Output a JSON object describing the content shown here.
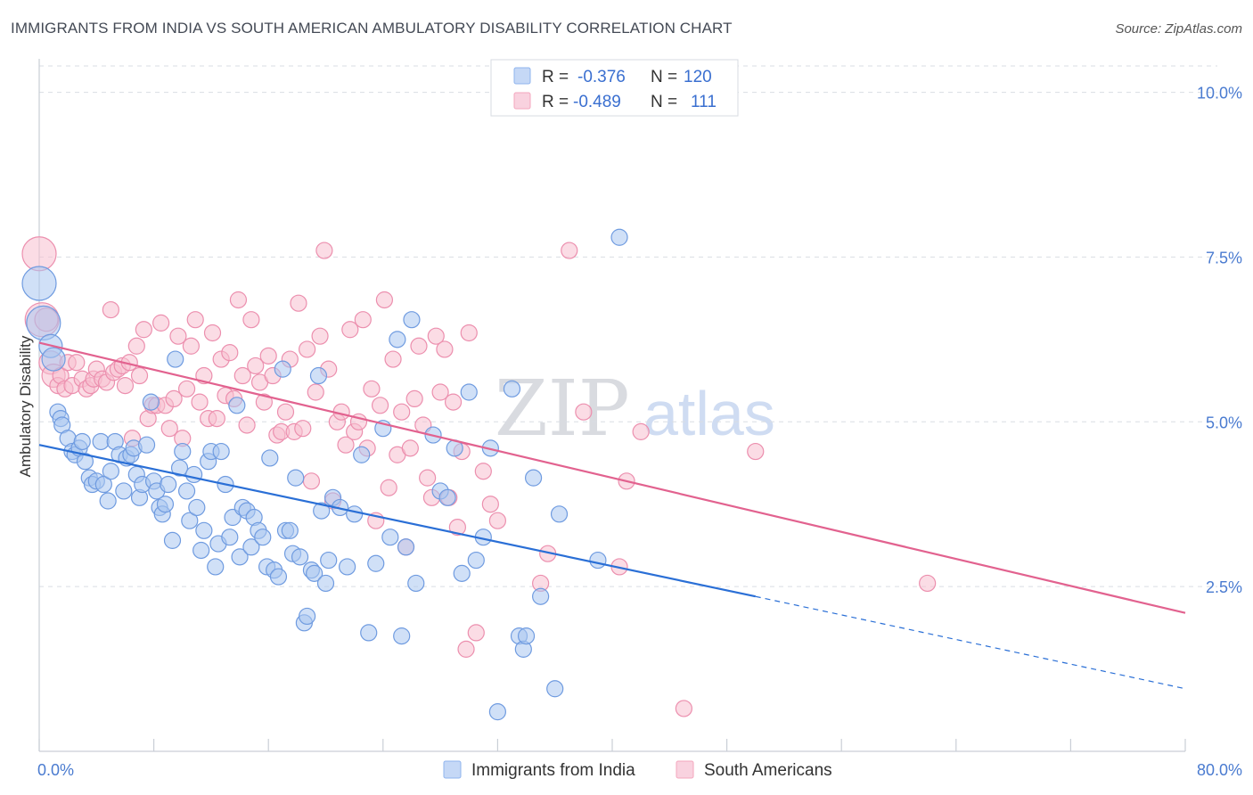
{
  "header": {
    "title": "IMMIGRANTS FROM INDIA VS SOUTH AMERICAN AMBULATORY DISABILITY CORRELATION CHART",
    "source": "Source: ZipAtlas.com"
  },
  "watermark": {
    "zip": "ZIP",
    "atlas": "atlas"
  },
  "legend_box": [
    {
      "r_label": "R = ",
      "r_value": "-0.376",
      "n_label": "N = ",
      "n_value": "120",
      "color": "#8fb4ee"
    },
    {
      "r_label": "R = ",
      "r_value": "-0.489",
      "n_label": "N = ",
      "n_value": "111",
      "color": "#f4a7be"
    }
  ],
  "colors": {
    "blue_fill": "#a9c6f0",
    "blue_stroke": "#6f9be0",
    "blue_line": "#2a6fd6",
    "pink_fill": "#f7bfd0",
    "pink_stroke": "#ec8fae",
    "pink_line": "#e2628f",
    "grid": "#d9dde3",
    "tick_label": "#4a7bd0"
  },
  "chart_data": {
    "type": "scatter",
    "title": "IMMIGRANTS FROM INDIA VS SOUTH AMERICAN AMBULATORY DISABILITY CORRELATION CHART",
    "xlabel": "",
    "ylabel": "Ambulatory Disability",
    "xlim": [
      0,
      80
    ],
    "ylim": [
      0,
      10.4
    ],
    "x_tick_labels": [
      "0.0%",
      "80.0%"
    ],
    "y_ticks": [
      2.5,
      5.0,
      7.5,
      10.0
    ],
    "y_tick_labels": [
      "2.5%",
      "5.0%",
      "7.5%",
      "10.0%"
    ],
    "grid": true,
    "legend_position": "top-center",
    "series": [
      {
        "name": "Immigrants from India",
        "R": -0.376,
        "N": 120,
        "trend": {
          "x0": 0,
          "y0": 4.65,
          "x1": 50,
          "y1": 2.35,
          "dash_to_x": 80,
          "dash_to_y": 0.95
        },
        "points": [
          [
            0,
            7.1
          ],
          [
            0.3,
            6.5
          ],
          [
            0.8,
            6.15
          ],
          [
            1,
            5.95
          ],
          [
            1.3,
            5.15
          ],
          [
            1.5,
            5.05
          ],
          [
            1.6,
            4.95
          ],
          [
            2,
            4.75
          ],
          [
            2.3,
            4.55
          ],
          [
            2.5,
            4.5
          ],
          [
            2.8,
            4.6
          ],
          [
            3,
            4.7
          ],
          [
            3.2,
            4.4
          ],
          [
            3.5,
            4.15
          ],
          [
            3.7,
            4.05
          ],
          [
            4,
            4.1
          ],
          [
            4.3,
            4.7
          ],
          [
            4.5,
            4.05
          ],
          [
            4.8,
            3.8
          ],
          [
            5,
            4.25
          ],
          [
            5.3,
            4.7
          ],
          [
            5.6,
            4.5
          ],
          [
            5.9,
            3.95
          ],
          [
            6.1,
            4.45
          ],
          [
            6.4,
            4.5
          ],
          [
            6.6,
            4.6
          ],
          [
            6.8,
            4.2
          ],
          [
            7,
            3.85
          ],
          [
            7.2,
            4.05
          ],
          [
            7.5,
            4.65
          ],
          [
            7.8,
            5.3
          ],
          [
            8,
            4.1
          ],
          [
            8.2,
            3.95
          ],
          [
            8.4,
            3.7
          ],
          [
            8.6,
            3.6
          ],
          [
            8.8,
            3.75
          ],
          [
            9,
            4.05
          ],
          [
            9.3,
            3.2
          ],
          [
            9.5,
            5.95
          ],
          [
            9.8,
            4.3
          ],
          [
            10,
            4.55
          ],
          [
            10.3,
            3.95
          ],
          [
            10.5,
            3.5
          ],
          [
            10.8,
            4.2
          ],
          [
            11,
            3.7
          ],
          [
            11.3,
            3.05
          ],
          [
            11.5,
            3.35
          ],
          [
            11.8,
            4.4
          ],
          [
            12,
            4.55
          ],
          [
            12.3,
            2.8
          ],
          [
            12.5,
            3.15
          ],
          [
            12.7,
            4.55
          ],
          [
            13,
            4.05
          ],
          [
            13.3,
            3.25
          ],
          [
            13.5,
            3.55
          ],
          [
            13.8,
            5.25
          ],
          [
            14,
            2.95
          ],
          [
            14.2,
            3.7
          ],
          [
            14.5,
            3.65
          ],
          [
            14.8,
            3.1
          ],
          [
            15,
            3.55
          ],
          [
            15.3,
            3.35
          ],
          [
            15.6,
            3.25
          ],
          [
            15.9,
            2.8
          ],
          [
            16.1,
            4.45
          ],
          [
            16.4,
            2.75
          ],
          [
            16.7,
            2.65
          ],
          [
            17,
            5.8
          ],
          [
            17.2,
            3.35
          ],
          [
            17.5,
            3.35
          ],
          [
            17.7,
            3.0
          ],
          [
            17.9,
            4.15
          ],
          [
            18.2,
            2.95
          ],
          [
            18.5,
            1.95
          ],
          [
            18.7,
            2.05
          ],
          [
            19,
            2.75
          ],
          [
            19.2,
            2.7
          ],
          [
            19.5,
            5.7
          ],
          [
            19.7,
            3.65
          ],
          [
            20,
            2.55
          ],
          [
            20.2,
            2.9
          ],
          [
            20.5,
            3.85
          ],
          [
            21,
            3.7
          ],
          [
            21.5,
            2.8
          ],
          [
            22,
            3.6
          ],
          [
            22.5,
            4.5
          ],
          [
            23,
            1.8
          ],
          [
            23.5,
            2.85
          ],
          [
            24,
            4.9
          ],
          [
            24.5,
            3.25
          ],
          [
            25,
            6.25
          ],
          [
            25.3,
            1.75
          ],
          [
            25.6,
            3.1
          ],
          [
            26,
            6.55
          ],
          [
            26.3,
            2.55
          ],
          [
            27.5,
            4.8
          ],
          [
            28,
            3.95
          ],
          [
            28.5,
            3.85
          ],
          [
            29,
            4.6
          ],
          [
            29.5,
            2.7
          ],
          [
            30,
            5.45
          ],
          [
            30.5,
            2.9
          ],
          [
            31,
            3.25
          ],
          [
            31.5,
            4.6
          ],
          [
            32,
            0.6
          ],
          [
            33,
            5.5
          ],
          [
            33.5,
            1.75
          ],
          [
            33.8,
            1.55
          ],
          [
            34,
            1.75
          ],
          [
            34.5,
            4.15
          ],
          [
            35,
            2.35
          ],
          [
            36,
            0.95
          ],
          [
            36.3,
            3.6
          ],
          [
            39,
            2.9
          ],
          [
            40.5,
            7.8
          ]
        ]
      },
      {
        "name": "South Americans",
        "R": -0.489,
        "N": 111,
        "trend": {
          "x0": 0,
          "y0": 6.2,
          "x1": 80,
          "y1": 2.1
        },
        "points": [
          [
            0,
            7.55
          ],
          [
            0.2,
            6.55
          ],
          [
            0.5,
            6.55
          ],
          [
            0.8,
            5.9
          ],
          [
            1,
            5.7
          ],
          [
            1.3,
            5.55
          ],
          [
            1.5,
            5.7
          ],
          [
            1.8,
            5.5
          ],
          [
            2,
            5.9
          ],
          [
            2.3,
            5.55
          ],
          [
            2.6,
            5.9
          ],
          [
            3,
            5.65
          ],
          [
            3.3,
            5.5
          ],
          [
            3.6,
            5.55
          ],
          [
            3.8,
            5.65
          ],
          [
            4,
            5.8
          ],
          [
            4.4,
            5.65
          ],
          [
            4.7,
            5.6
          ],
          [
            5,
            6.7
          ],
          [
            5.2,
            5.75
          ],
          [
            5.5,
            5.8
          ],
          [
            5.8,
            5.85
          ],
          [
            6,
            5.55
          ],
          [
            6.3,
            5.9
          ],
          [
            6.5,
            4.75
          ],
          [
            6.8,
            6.15
          ],
          [
            7,
            5.7
          ],
          [
            7.3,
            6.4
          ],
          [
            7.6,
            5.05
          ],
          [
            7.9,
            5.25
          ],
          [
            8.2,
            5.25
          ],
          [
            8.5,
            6.5
          ],
          [
            8.8,
            5.25
          ],
          [
            9.1,
            4.9
          ],
          [
            9.4,
            5.35
          ],
          [
            9.7,
            6.3
          ],
          [
            10,
            4.75
          ],
          [
            10.3,
            5.5
          ],
          [
            10.6,
            6.15
          ],
          [
            10.9,
            6.55
          ],
          [
            11.2,
            5.3
          ],
          [
            11.5,
            5.7
          ],
          [
            11.8,
            5.05
          ],
          [
            12.1,
            6.35
          ],
          [
            12.4,
            5.05
          ],
          [
            12.7,
            5.95
          ],
          [
            13,
            5.4
          ],
          [
            13.3,
            6.05
          ],
          [
            13.6,
            5.35
          ],
          [
            13.9,
            6.85
          ],
          [
            14.2,
            5.7
          ],
          [
            14.5,
            4.95
          ],
          [
            14.8,
            6.55
          ],
          [
            15.1,
            5.85
          ],
          [
            15.4,
            5.6
          ],
          [
            15.7,
            5.3
          ],
          [
            16,
            6.0
          ],
          [
            16.3,
            5.7
          ],
          [
            16.6,
            4.8
          ],
          [
            16.9,
            4.85
          ],
          [
            17.2,
            5.15
          ],
          [
            17.5,
            5.95
          ],
          [
            17.8,
            4.85
          ],
          [
            18.1,
            6.8
          ],
          [
            18.4,
            4.9
          ],
          [
            18.7,
            6.1
          ],
          [
            19,
            4.1
          ],
          [
            19.3,
            5.45
          ],
          [
            19.6,
            6.3
          ],
          [
            19.9,
            7.6
          ],
          [
            20.2,
            5.8
          ],
          [
            20.5,
            3.8
          ],
          [
            20.8,
            5.0
          ],
          [
            21.1,
            5.15
          ],
          [
            21.4,
            4.65
          ],
          [
            21.7,
            6.4
          ],
          [
            22,
            4.85
          ],
          [
            22.3,
            5.0
          ],
          [
            22.6,
            6.55
          ],
          [
            22.9,
            4.6
          ],
          [
            23.2,
            5.5
          ],
          [
            23.5,
            3.5
          ],
          [
            23.8,
            5.25
          ],
          [
            24.1,
            6.85
          ],
          [
            24.4,
            4.0
          ],
          [
            24.7,
            5.95
          ],
          [
            25,
            4.5
          ],
          [
            25.3,
            5.15
          ],
          [
            25.6,
            3.1
          ],
          [
            25.9,
            4.6
          ],
          [
            26.2,
            5.35
          ],
          [
            26.5,
            6.15
          ],
          [
            26.8,
            4.95
          ],
          [
            27.1,
            4.15
          ],
          [
            27.4,
            3.85
          ],
          [
            27.7,
            6.3
          ],
          [
            28,
            5.45
          ],
          [
            28.3,
            6.1
          ],
          [
            28.6,
            3.85
          ],
          [
            28.9,
            5.3
          ],
          [
            29.2,
            3.4
          ],
          [
            29.5,
            4.55
          ],
          [
            29.8,
            1.55
          ],
          [
            30,
            6.35
          ],
          [
            30.5,
            1.8
          ],
          [
            31,
            4.25
          ],
          [
            31.5,
            3.75
          ],
          [
            32,
            3.5
          ],
          [
            35,
            2.55
          ],
          [
            35.5,
            3.0
          ],
          [
            37,
            7.6
          ],
          [
            38,
            5.15
          ],
          [
            40.5,
            2.8
          ],
          [
            42,
            4.85
          ],
          [
            41,
            4.1
          ],
          [
            45,
            0.65
          ],
          [
            50,
            4.55
          ],
          [
            62,
            2.55
          ]
        ]
      }
    ]
  }
}
